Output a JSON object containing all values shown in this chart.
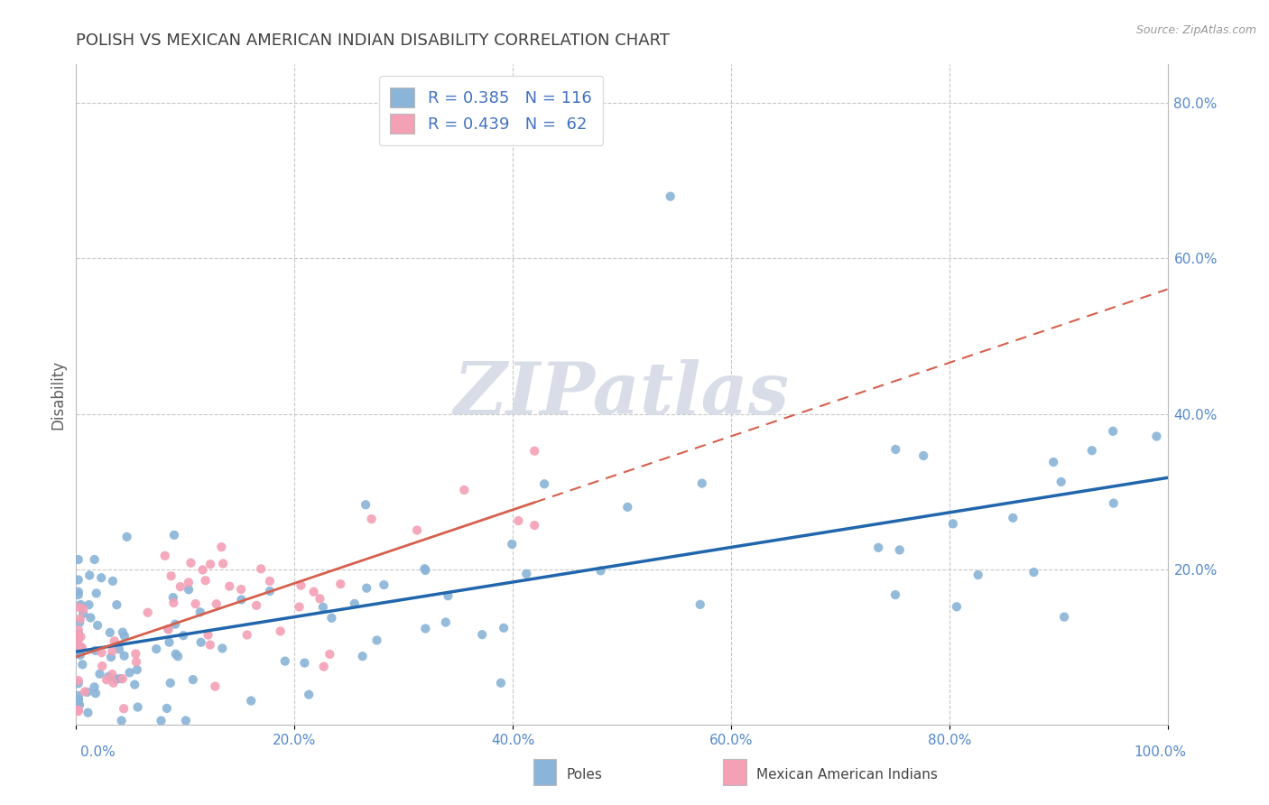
{
  "title": "POLISH VS MEXICAN AMERICAN INDIAN DISABILITY CORRELATION CHART",
  "source": "Source: ZipAtlas.com",
  "ylabel": "Disability",
  "blue_label": "Poles",
  "pink_label": "Mexican American Indians",
  "blue_R": 0.385,
  "blue_N": 116,
  "pink_R": 0.439,
  "pink_N": 62,
  "xlim": [
    0.0,
    1.0
  ],
  "ylim": [
    0.0,
    0.85
  ],
  "xticks": [
    0.0,
    0.2,
    0.4,
    0.6,
    0.8,
    1.0
  ],
  "xtick_labels": [
    "0.0%",
    "20.0%",
    "40.0%",
    "60.0%",
    "80.0%",
    "100.0%"
  ],
  "yticks_right": [
    0.2,
    0.4,
    0.6,
    0.8
  ],
  "ytick_labels_right": [
    "20.0%",
    "40.0%",
    "60.0%",
    "80.0%"
  ],
  "blue_color": "#8ab4d8",
  "pink_color": "#f4a0b5",
  "blue_line_color": "#2166ac",
  "pink_line_color": "#d6604d",
  "grid_color": "#c8c8c8",
  "watermark_color": "#d8dde8",
  "title_color": "#404040",
  "axis_label_color": "#606060",
  "tick_label_color": "#5588cc",
  "legend_text_color": "#4472c4",
  "legend_edge_color": "#dddddd",
  "blue_scatter_seed": 42,
  "pink_scatter_seed": 99
}
